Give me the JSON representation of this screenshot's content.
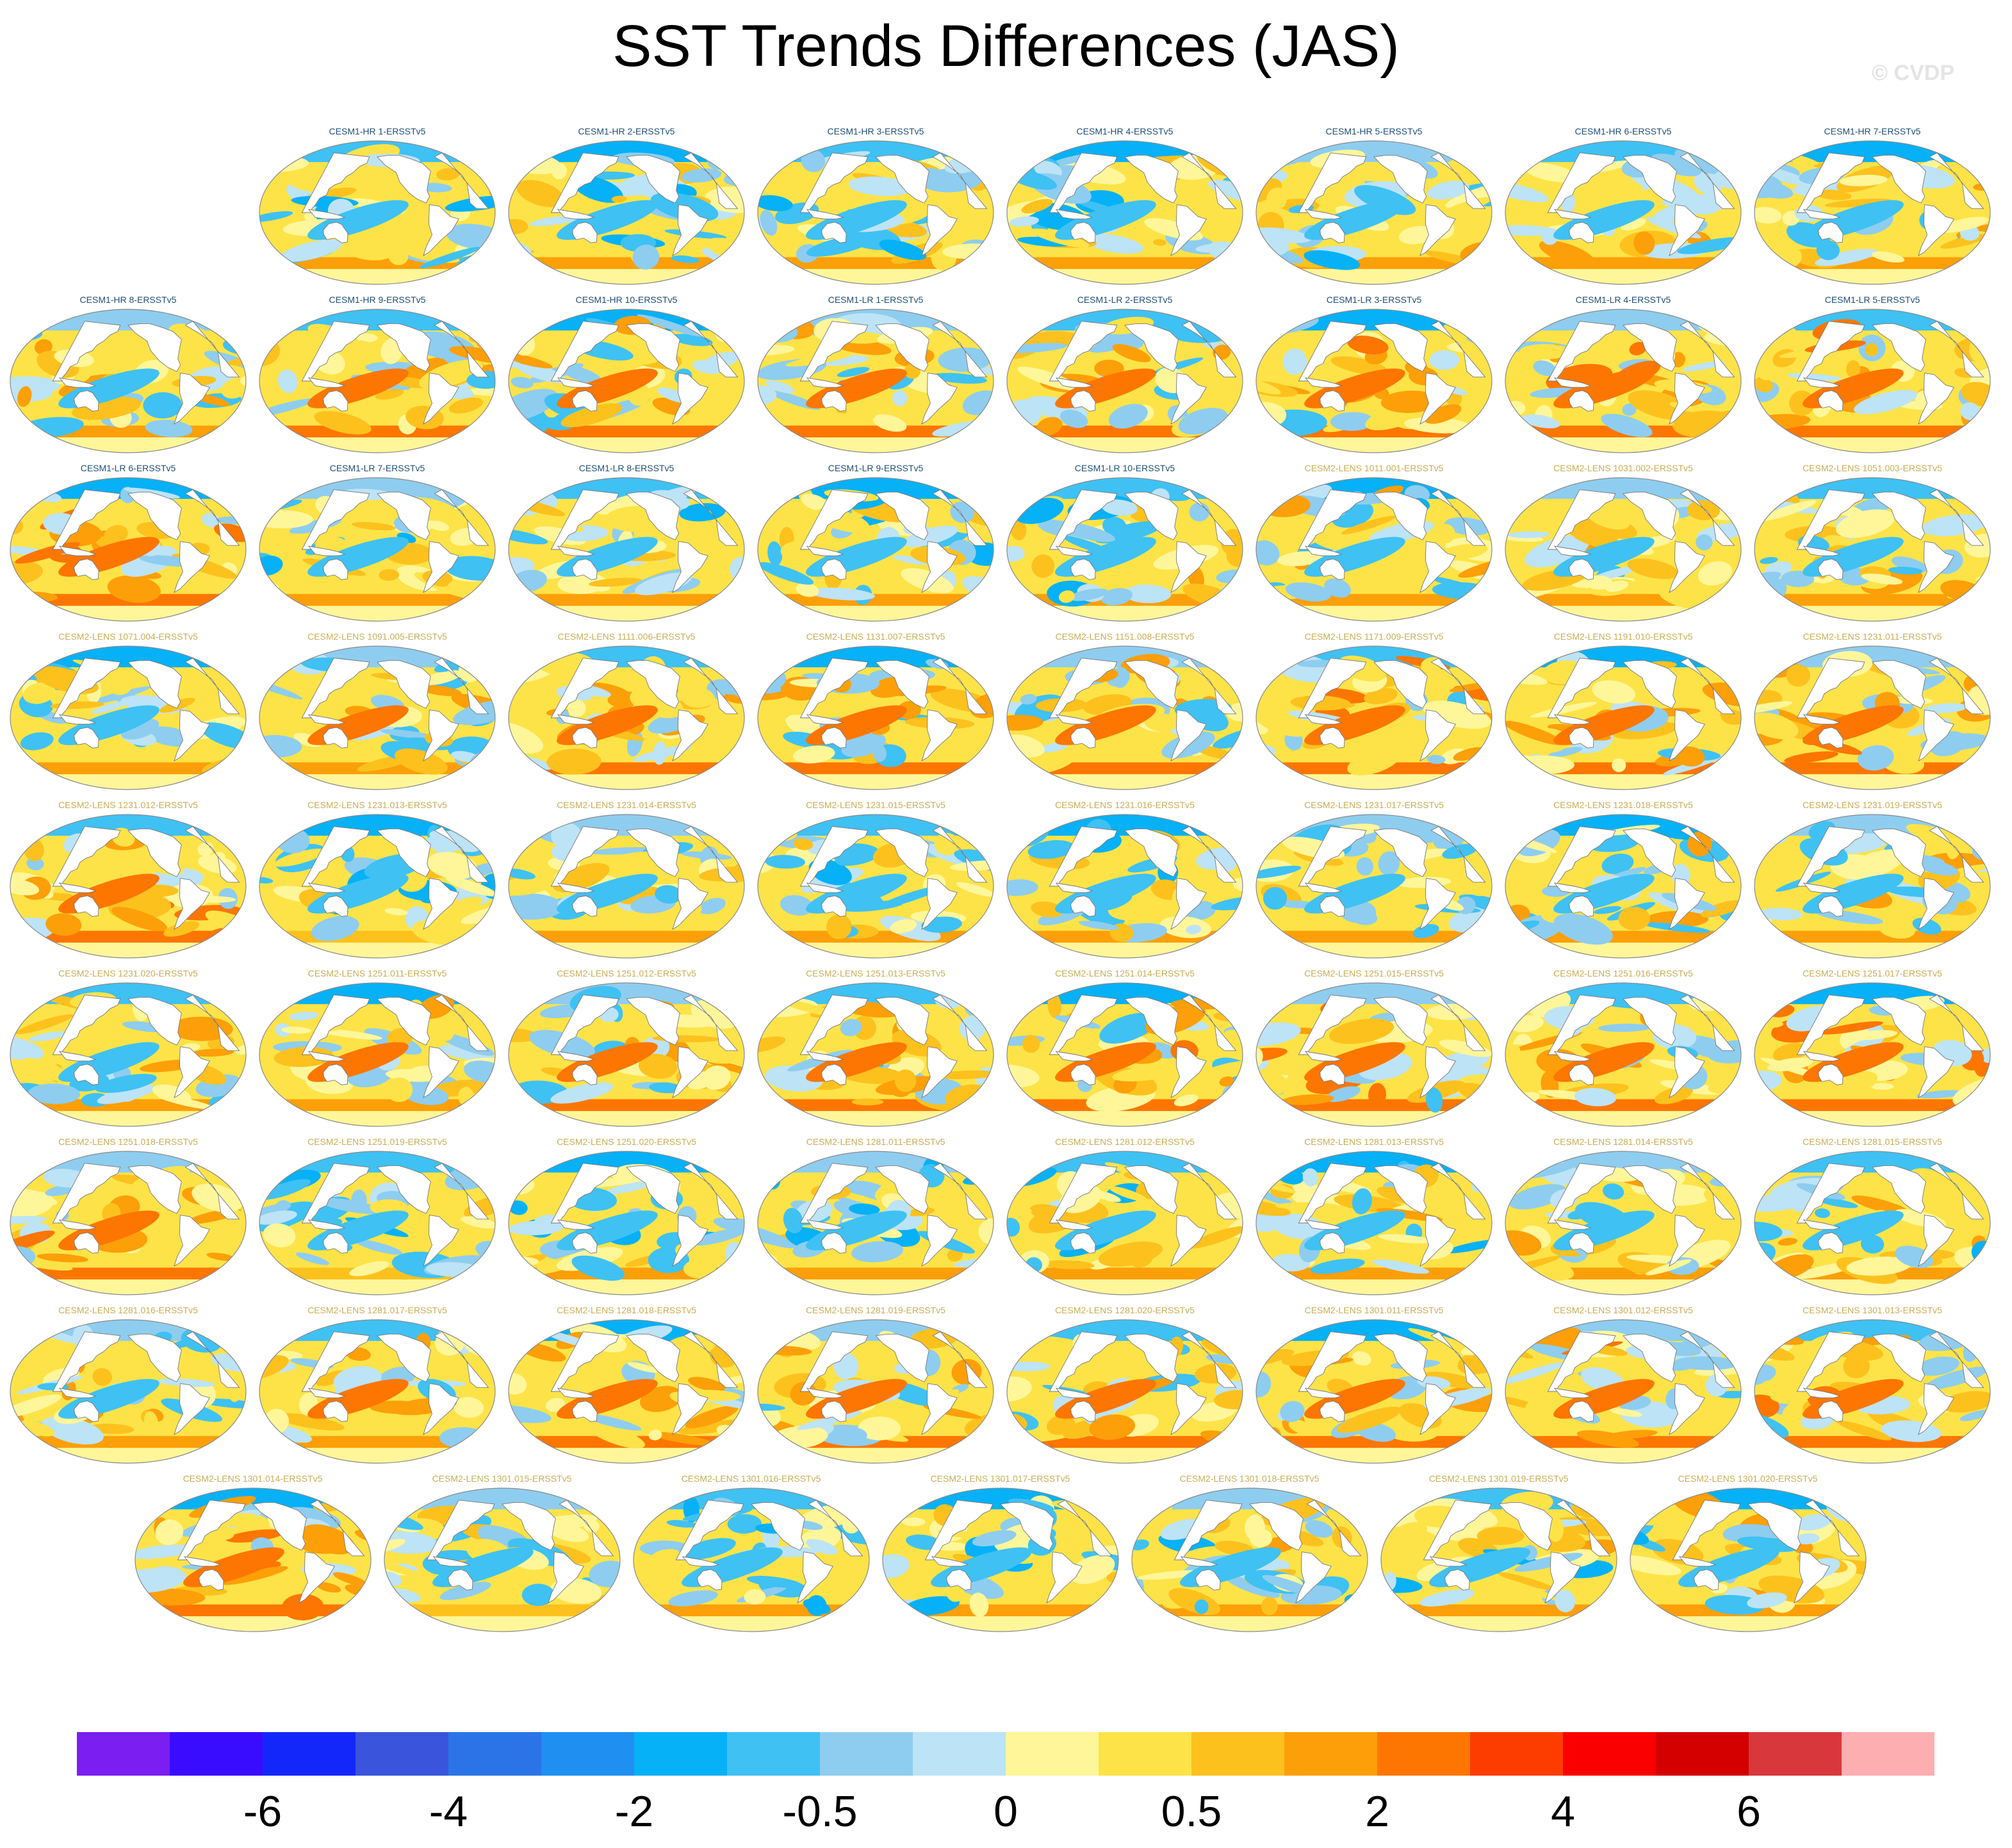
{
  "title": "SST Trends Differences (JAS)",
  "watermark": "© CVDP",
  "colors": {
    "label_cesm1": "#1f4e79",
    "label_cesm2": "#c9ad55",
    "land": "#ffffff",
    "coast": "#777777"
  },
  "chart_data": {
    "type": "heatmap",
    "description_of_panels": "global map panels, one per model ensemble member",
    "colorbar": {
      "colors": [
        "#7a1ef2",
        "#3a0cff",
        "#1427fa",
        "#3a55dc",
        "#2b74e8",
        "#1f8ff2",
        "#06b1f7",
        "#3fc1f4",
        "#8ecdef",
        "#bde3f6",
        "#fff69a",
        "#fde348",
        "#fdc11e",
        "#fd9f08",
        "#fd7601",
        "#fd3d00",
        "#fa0000",
        "#d40000",
        "#d8383c",
        "#fcaeb0"
      ],
      "tick_labels": [
        "-6",
        "-4",
        "-2",
        "-0.5",
        "0",
        "0.5",
        "2",
        "4",
        "6"
      ],
      "tick_boundaries": [
        2,
        4,
        6,
        8,
        10,
        12,
        14,
        16,
        18
      ]
    },
    "rows": [
      {
        "offset": 1,
        "panels": [
          "CESM1-HR 1-ERSSTv5",
          "CESM1-HR 2-ERSSTv5",
          "CESM1-HR 3-ERSSTv5",
          "CESM1-HR 4-ERSSTv5",
          "CESM1-HR 5-ERSSTv5",
          "CESM1-HR 6-ERSSTv5",
          "CESM1-HR 7-ERSSTv5"
        ]
      },
      {
        "offset": 0,
        "panels": [
          "CESM1-HR 8-ERSSTv5",
          "CESM1-HR 9-ERSSTv5",
          "CESM1-HR 10-ERSSTv5",
          "CESM1-LR 1-ERSSTv5",
          "CESM1-LR 2-ERSSTv5",
          "CESM1-LR 3-ERSSTv5",
          "CESM1-LR 4-ERSSTv5",
          "CESM1-LR 5-ERSSTv5"
        ]
      },
      {
        "offset": 0,
        "panels": [
          "CESM1-LR 6-ERSSTv5",
          "CESM1-LR 7-ERSSTv5",
          "CESM1-LR 8-ERSSTv5",
          "CESM1-LR 9-ERSSTv5",
          "CESM1-LR 10-ERSSTv5",
          "CESM2-LENS 1011.001-ERSSTv5",
          "CESM2-LENS 1031.002-ERSSTv5",
          "CESM2-LENS 1051.003-ERSSTv5"
        ]
      },
      {
        "offset": 0,
        "panels": [
          "CESM2-LENS 1071.004-ERSSTv5",
          "CESM2-LENS 1091.005-ERSSTv5",
          "CESM2-LENS 1111.006-ERSSTv5",
          "CESM2-LENS 1131.007-ERSSTv5",
          "CESM2-LENS 1151.008-ERSSTv5",
          "CESM2-LENS 1171.009-ERSSTv5",
          "CESM2-LENS 1191.010-ERSSTv5",
          "CESM2-LENS 1231.011-ERSSTv5"
        ]
      },
      {
        "offset": 0,
        "panels": [
          "CESM2-LENS 1231.012-ERSSTv5",
          "CESM2-LENS 1231.013-ERSSTv5",
          "CESM2-LENS 1231.014-ERSSTv5",
          "CESM2-LENS 1231.015-ERSSTv5",
          "CESM2-LENS 1231.016-ERSSTv5",
          "CESM2-LENS 1231.017-ERSSTv5",
          "CESM2-LENS 1231.018-ERSSTv5",
          "CESM2-LENS 1231.019-ERSSTv5"
        ]
      },
      {
        "offset": 0,
        "panels": [
          "CESM2-LENS 1231.020-ERSSTv5",
          "CESM2-LENS 1251.011-ERSSTv5",
          "CESM2-LENS 1251.012-ERSSTv5",
          "CESM2-LENS 1251.013-ERSSTv5",
          "CESM2-LENS 1251.014-ERSSTv5",
          "CESM2-LENS 1251.015-ERSSTv5",
          "CESM2-LENS 1251.016-ERSSTv5",
          "CESM2-LENS 1251.017-ERSSTv5"
        ]
      },
      {
        "offset": 0,
        "panels": [
          "CESM2-LENS 1251.018-ERSSTv5",
          "CESM2-LENS 1251.019-ERSSTv5",
          "CESM2-LENS 1251.020-ERSSTv5",
          "CESM2-LENS 1281.011-ERSSTv5",
          "CESM2-LENS 1281.012-ERSSTv5",
          "CESM2-LENS 1281.013-ERSSTv5",
          "CESM2-LENS 1281.014-ERSSTv5",
          "CESM2-LENS 1281.015-ERSSTv5"
        ]
      },
      {
        "offset": 0,
        "panels": [
          "CESM2-LENS 1281.016-ERSSTv5",
          "CESM2-LENS 1281.017-ERSSTv5",
          "CESM2-LENS 1281.018-ERSSTv5",
          "CESM2-LENS 1281.019-ERSSTv5",
          "CESM2-LENS 1281.020-ERSSTv5",
          "CESM2-LENS 1301.011-ERSSTv5",
          "CESM2-LENS 1301.012-ERSSTv5",
          "CESM2-LENS 1301.013-ERSSTv5"
        ]
      },
      {
        "offset": 0.5,
        "panels": [
          "CESM2-LENS 1301.014-ERSSTv5",
          "CESM2-LENS 1301.015-ERSSTv5",
          "CESM2-LENS 1301.016-ERSSTv5",
          "CESM2-LENS 1301.017-ERSSTv5",
          "CESM2-LENS 1301.018-ERSSTv5",
          "CESM2-LENS 1301.019-ERSSTv5",
          "CESM2-LENS 1301.020-ERSSTv5"
        ]
      }
    ]
  }
}
